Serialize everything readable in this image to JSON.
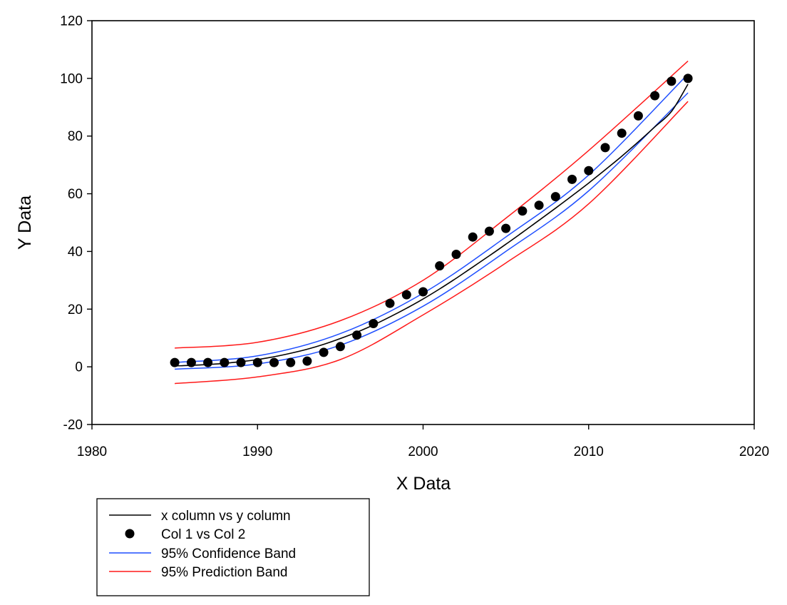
{
  "chart_data": {
    "type": "scatter",
    "title": "",
    "xlabel": "X Data",
    "ylabel": "Y Data",
    "xlim": [
      1980,
      2020
    ],
    "ylim": [
      -20,
      120
    ],
    "x_ticks": [
      1980,
      1990,
      2000,
      2010,
      2020
    ],
    "y_ticks": [
      -20,
      0,
      20,
      40,
      60,
      80,
      100,
      120
    ],
    "grid": false,
    "legend_position": "bottom-left",
    "series": [
      {
        "name": "x column vs y column",
        "kind": "line",
        "color": "#000000",
        "x": [
          1985,
          1986,
          1987,
          1988,
          1989,
          1990,
          1991,
          1992,
          1993,
          1994,
          1995,
          1996,
          1997,
          1998,
          1999,
          2000,
          2001,
          2002,
          2003,
          2004,
          2005,
          2006,
          2007,
          2008,
          2009,
          2010,
          2011,
          2012,
          2013,
          2014,
          2015,
          2016
        ],
        "y": [
          0.3,
          0.5,
          0.8,
          1.2,
          1.8,
          2.5,
          3.5,
          4.7,
          6.1,
          7.8,
          9.8,
          12.0,
          14.5,
          17.3,
          20.3,
          23.5,
          27.0,
          30.7,
          34.6,
          38.5,
          42.5,
          46.6,
          50.8,
          55.0,
          59.3,
          63.7,
          68.3,
          73.0,
          78.0,
          83.2,
          88.5,
          98.0
        ]
      },
      {
        "name": "Col 1 vs Col 2",
        "kind": "scatter",
        "color": "#000000",
        "x": [
          1985,
          1986,
          1987,
          1988,
          1989,
          1990,
          1991,
          1992,
          1993,
          1994,
          1995,
          1996,
          1997,
          1998,
          1999,
          2000,
          2001,
          2002,
          2003,
          2004,
          2005,
          2006,
          2007,
          2008,
          2009,
          2010,
          2011,
          2012,
          2013,
          2014,
          2015,
          2016
        ],
        "y": [
          1.5,
          1.5,
          1.5,
          1.5,
          1.5,
          1.5,
          1.5,
          1.5,
          2,
          5,
          7,
          11,
          15,
          22,
          25,
          26,
          35,
          39,
          45,
          47,
          48,
          54,
          56,
          59,
          65,
          68,
          76,
          81,
          87,
          94,
          99,
          100
        ]
      },
      {
        "name": "95% Confidence Band",
        "kind": "band",
        "color": "#1f4fff",
        "x": [
          1985,
          1990,
          1995,
          2000,
          2005,
          2010,
          2016
        ],
        "upper": [
          1.5,
          3.8,
          11.5,
          25.5,
          45.0,
          66.5,
          101.5
        ],
        "lower": [
          -0.8,
          1.0,
          7.5,
          21.0,
          40.0,
          61.0,
          95.0
        ]
      },
      {
        "name": "95% Prediction Band",
        "kind": "band",
        "color": "#ff1a1a",
        "x": [
          1985,
          1990,
          1995,
          2000,
          2005,
          2010,
          2016
        ],
        "upper": [
          6.5,
          8.5,
          16.0,
          30.0,
          51.5,
          75.0,
          106.0
        ],
        "lower": [
          -5.8,
          -3.5,
          2.5,
          18.0,
          36.0,
          56.5,
          92.0
        ]
      }
    ]
  }
}
